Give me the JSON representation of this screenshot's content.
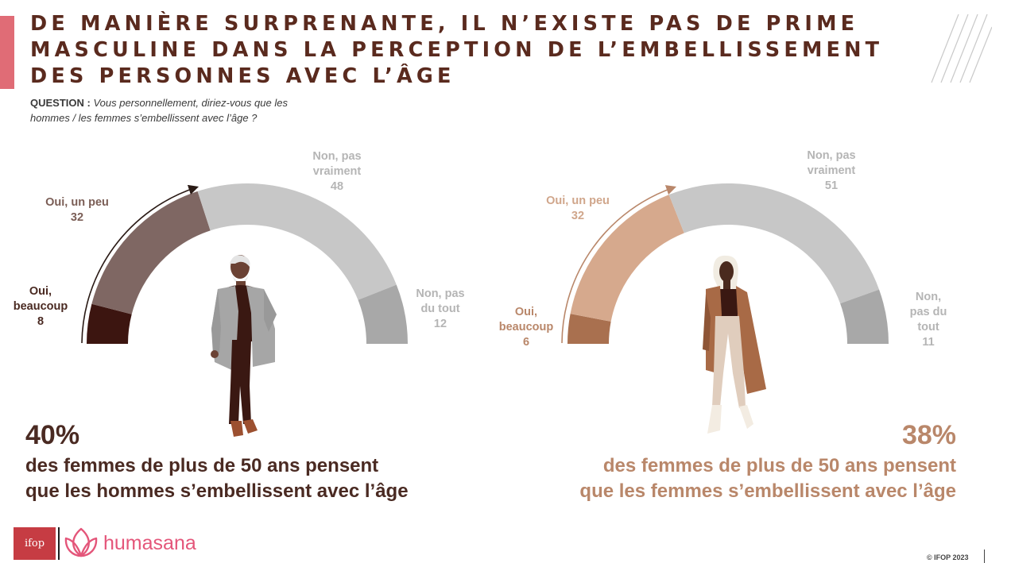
{
  "title_lines": [
    "DE MANIÈRE SURPRENANTE, IL N’EXISTE PAS DE PRIME",
    "MASCULINE DANS LA PERCEPTION DE L’EMBELLISSEMENT",
    "DES PERSONNES AVEC L’ÂGE"
  ],
  "question": {
    "label": "QUESTION :",
    "text_line1": " Vous personnellement, diriez-vous que les",
    "text_line2": "hommes / les femmes s’embellissent avec l’âge ?"
  },
  "colors": {
    "title": "#5a2a1e",
    "accent": "#e06c76",
    "men_primary": "#4a2a22",
    "women_primary": "#b9876a",
    "grey_label": "#b5b5b5",
    "brand": "#e4567a"
  },
  "chart_data": [
    {
      "type": "pie",
      "variant": "half-donut",
      "categories": [
        "Oui, beaucoup",
        "Oui, un peu",
        "Non, pas vraiment",
        "Non, pas du tout"
      ],
      "values": [
        8,
        32,
        48,
        12
      ],
      "colors": [
        "#3c1510",
        "#7f6763",
        "#c7c7c7",
        "#a8a8a8"
      ],
      "labels": [
        {
          "lines": [
            "Oui,",
            "beaucoup"
          ],
          "value": "8"
        },
        {
          "lines": [
            "Oui, un peu"
          ],
          "value": "32"
        },
        {
          "lines": [
            "Non, pas",
            "vraiment"
          ],
          "value": "48"
        },
        {
          "lines": [
            "Non, pas",
            "du tout"
          ],
          "value": "12"
        }
      ],
      "highlight_pct": "40%",
      "statement": [
        "des femmes de plus de 50 ans pensent",
        "que les hommes s’embellissent avec l’âge"
      ]
    },
    {
      "type": "pie",
      "variant": "half-donut",
      "categories": [
        "Oui, beaucoup",
        "Oui, un peu",
        "Non, pas vraiment",
        "Non, pas du tout"
      ],
      "values": [
        6,
        32,
        51,
        11
      ],
      "colors": [
        "#a9704f",
        "#d6a98d",
        "#c7c7c7",
        "#a8a8a8"
      ],
      "labels": [
        {
          "lines": [
            "Oui,",
            "beaucoup"
          ],
          "value": "6"
        },
        {
          "lines": [
            "Oui, un peu"
          ],
          "value": "32"
        },
        {
          "lines": [
            "Non, pas",
            "vraiment"
          ],
          "value": "51"
        },
        {
          "lines": [
            "Non,",
            "pas du",
            "tout"
          ],
          "value": "11"
        }
      ],
      "highlight_pct": "38%",
      "statement": [
        "des femmes de plus de 50 ans pensent",
        "que les femmes s’embellissent avec l’âge"
      ]
    }
  ],
  "footer": {
    "logo_text": "ifop",
    "brand_name": "humasana",
    "copyright": "© IFOP 2023"
  },
  "icons": {
    "logo": "ifop-logo",
    "brand": "lotus-icon",
    "men": "man-figure-illustration",
    "women": "woman-figure-illustration",
    "decoration": "diagonal-lines-decoration"
  }
}
